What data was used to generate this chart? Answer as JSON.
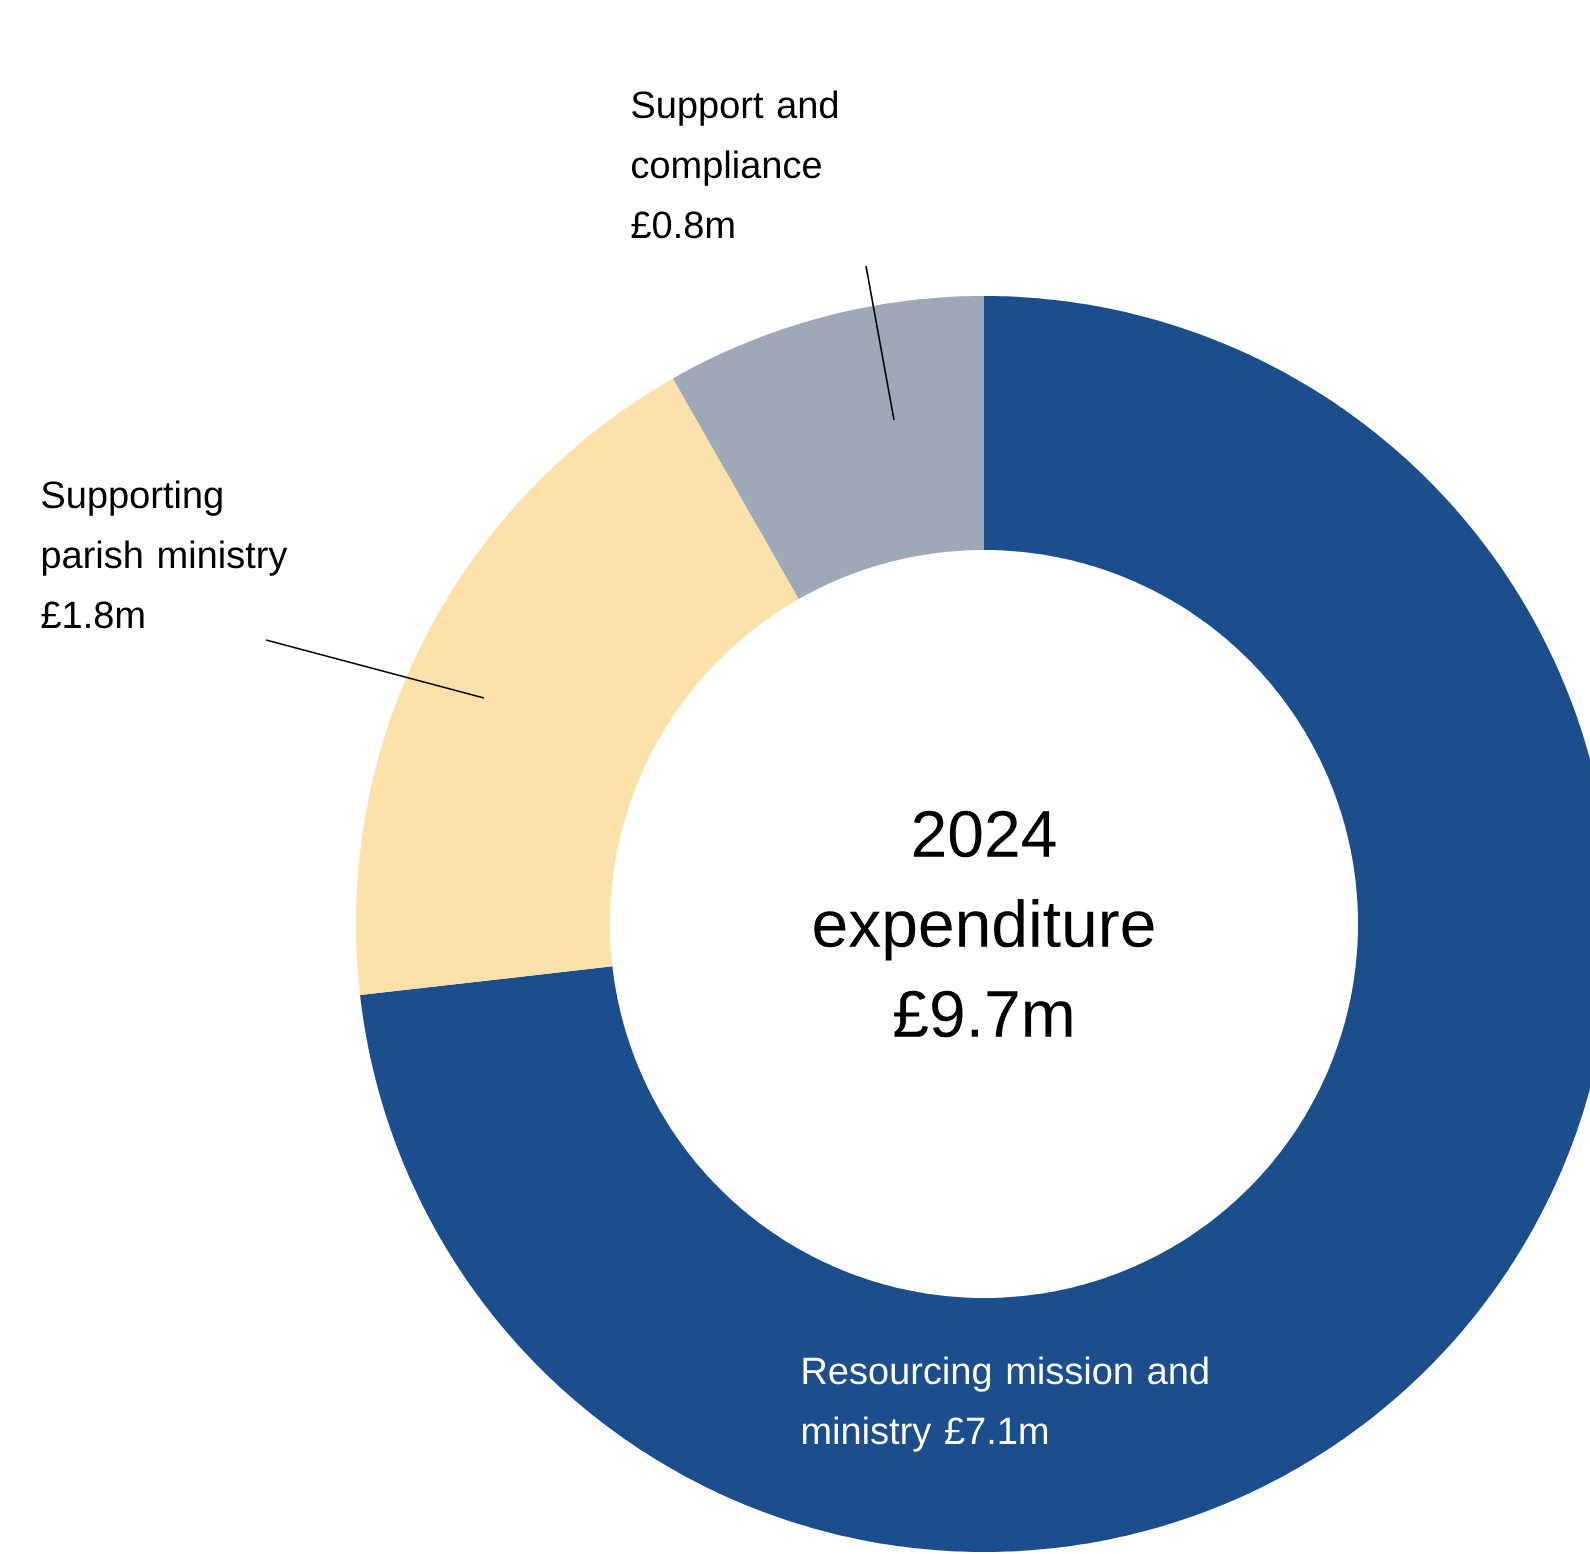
{
  "chart_data": {
    "type": "donut",
    "title": "2024 expenditure £9.7m",
    "categories": [
      "Resourcing mission and ministry",
      "Supporting parish ministry",
      "Support and compliance"
    ],
    "values": [
      7.1,
      1.8,
      0.8
    ],
    "colors": [
      "#1c4e8e",
      "#fce1ab",
      "#9ea8b6"
    ],
    "value_labels": [
      "£7.1m",
      "£1.8m",
      "£0.8m"
    ]
  }
}
